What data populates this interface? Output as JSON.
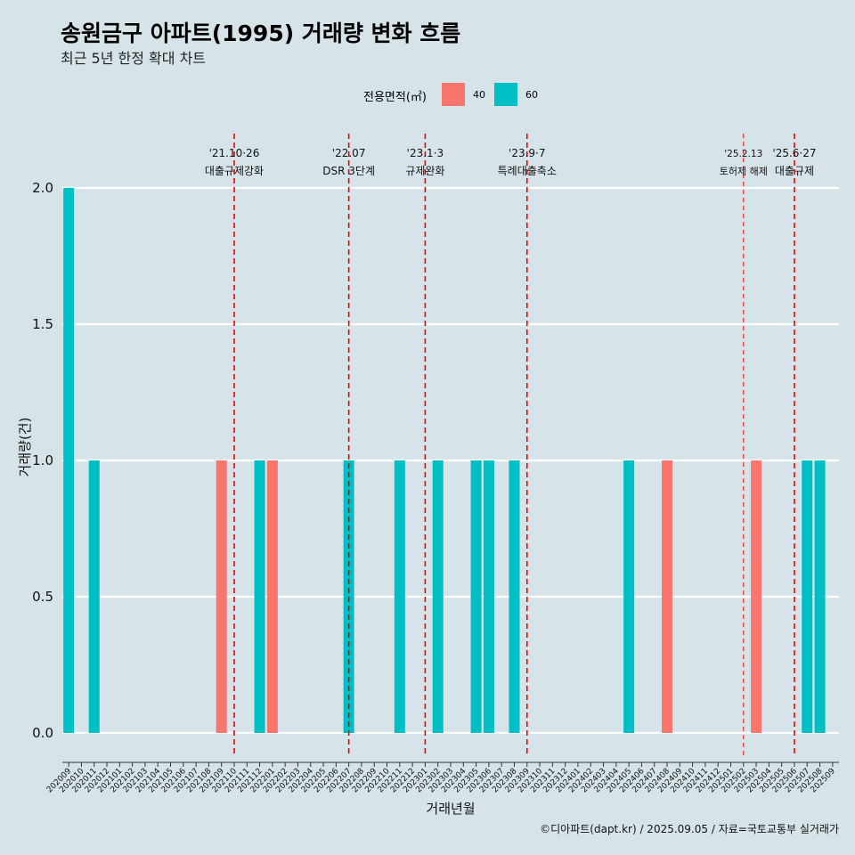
{
  "title": "송원금구 아파트(1995) 거래량 변화 흐름",
  "subtitle": "최근 5년 한정 확대 차트",
  "legend": {
    "title": "전용면적(㎡)",
    "items": [
      {
        "label": "40",
        "color": "#f8766d"
      },
      {
        "label": "60",
        "color": "#00bfc4"
      }
    ]
  },
  "caption": "©디아파트(dapt.kr) / 2025.09.05 / 자료=국토교통부 실거래가",
  "chart_data": {
    "type": "bar",
    "title": "송원금구 아파트(1995) 거래량 변화 흐름",
    "subtitle": "최근 5년 한정 확대 차트",
    "xlabel": "거래년월",
    "ylabel": "거래량(건)",
    "ylim": [
      0,
      2
    ],
    "yticks": [
      "0.0",
      "0.5",
      "1.0",
      "1.5",
      "2.0"
    ],
    "grid": "horizontal",
    "legend_position": "top",
    "categories": [
      "202009",
      "202010",
      "202011",
      "202012",
      "202101",
      "202102",
      "202103",
      "202104",
      "202105",
      "202106",
      "202107",
      "202108",
      "202109",
      "202110",
      "202111",
      "202112",
      "202201",
      "202202",
      "202203",
      "202204",
      "202205",
      "202206",
      "202207",
      "202208",
      "202209",
      "202210",
      "202211",
      "202212",
      "202301",
      "202302",
      "202303",
      "202304",
      "202305",
      "202306",
      "202307",
      "202308",
      "202309",
      "202310",
      "202311",
      "202312",
      "202401",
      "202402",
      "202403",
      "202404",
      "202405",
      "202406",
      "202407",
      "202408",
      "202409",
      "202410",
      "202411",
      "202412",
      "202501",
      "202502",
      "202503",
      "202504",
      "202505",
      "202506",
      "202507",
      "202508",
      "202509"
    ],
    "series": [
      {
        "name": "40",
        "color": "#f8766d",
        "values": [
          0,
          0,
          0,
          0,
          0,
          0,
          0,
          0,
          0,
          0,
          0,
          0,
          1,
          0,
          0,
          0,
          1,
          0,
          0,
          0,
          0,
          0,
          0,
          0,
          0,
          0,
          0,
          0,
          0,
          0,
          0,
          0,
          0,
          0,
          0,
          0,
          0,
          0,
          0,
          0,
          0,
          0,
          0,
          0,
          0,
          0,
          0,
          1,
          0,
          0,
          0,
          0,
          0,
          0,
          1,
          0,
          0,
          0,
          0,
          0,
          0
        ]
      },
      {
        "name": "60",
        "color": "#00bfc4",
        "values": [
          2,
          0,
          1,
          0,
          0,
          0,
          0,
          0,
          0,
          0,
          0,
          0,
          0,
          0,
          0,
          1,
          0,
          0,
          0,
          0,
          0,
          0,
          1,
          0,
          0,
          0,
          1,
          0,
          0,
          1,
          0,
          0,
          1,
          1,
          0,
          1,
          0,
          0,
          0,
          0,
          0,
          0,
          0,
          0,
          1,
          0,
          0,
          0,
          0,
          0,
          0,
          0,
          0,
          0,
          0,
          0,
          0,
          0,
          1,
          1,
          0
        ]
      }
    ],
    "events": [
      {
        "category": "202110",
        "date": "'21.10·26",
        "label": "대출규제강화",
        "style": "major"
      },
      {
        "category": "202207",
        "date": "'22.07",
        "label": "DSR 3단계",
        "style": "major"
      },
      {
        "category": "202301",
        "date": "'23.1·3",
        "label": "규제완화",
        "style": "major"
      },
      {
        "category": "202309",
        "date": "'23.9·7",
        "label": "특례대출축소",
        "style": "major"
      },
      {
        "category": "202502",
        "date": "'25.2.13",
        "label": "토허제 해제",
        "style": "minor"
      },
      {
        "category": "202506",
        "date": "'25.6·27",
        "label": "대출규제",
        "style": "major"
      }
    ]
  }
}
